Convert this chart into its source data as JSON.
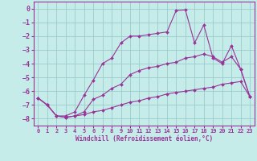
{
  "xlabel": "Windchill (Refroidissement éolien,°C)",
  "background_color": "#c5ece8",
  "grid_color": "#99cccc",
  "line_color": "#993399",
  "xlim": [
    -0.5,
    23.5
  ],
  "ylim": [
    -8.5,
    0.5
  ],
  "yticks": [
    0,
    -1,
    -2,
    -3,
    -4,
    -5,
    -6,
    -7,
    -8
  ],
  "xticks": [
    0,
    1,
    2,
    3,
    4,
    5,
    6,
    7,
    8,
    9,
    10,
    11,
    12,
    13,
    14,
    15,
    16,
    17,
    18,
    19,
    20,
    21,
    22,
    23
  ],
  "lines": [
    {
      "x": [
        0,
        1,
        2,
        3,
        4,
        5,
        6,
        7,
        8,
        9,
        10,
        11,
        12,
        13,
        14,
        15,
        16,
        17,
        18,
        19,
        20,
        21,
        22,
        23
      ],
      "y": [
        -6.5,
        -7.0,
        -7.8,
        -7.9,
        -7.8,
        -7.7,
        -7.5,
        -7.4,
        -7.2,
        -7.0,
        -6.8,
        -6.7,
        -6.5,
        -6.4,
        -6.2,
        -6.1,
        -6.0,
        -5.9,
        -5.8,
        -5.7,
        -5.5,
        -5.4,
        -5.3,
        -6.4
      ],
      "marker": "D",
      "markersize": 2.0,
      "linewidth": 0.8
    },
    {
      "x": [
        0,
        1,
        2,
        3,
        4,
        5,
        6,
        7,
        8,
        9,
        10,
        11,
        12,
        13,
        14,
        15,
        16,
        17,
        18,
        19,
        20,
        21,
        22,
        23
      ],
      "y": [
        -6.5,
        -7.0,
        -7.8,
        -7.9,
        -7.8,
        -7.5,
        -6.6,
        -6.3,
        -5.8,
        -5.5,
        -4.8,
        -4.5,
        -4.3,
        -4.2,
        -4.0,
        -3.9,
        -3.6,
        -3.5,
        -3.3,
        -3.5,
        -3.9,
        -3.5,
        -4.4,
        -6.4
      ],
      "marker": "D",
      "markersize": 2.0,
      "linewidth": 0.8
    },
    {
      "x": [
        0,
        1,
        2,
        3,
        4,
        5,
        6,
        7,
        8,
        9,
        10,
        11,
        12,
        13,
        14,
        15,
        16,
        17,
        18,
        19,
        20,
        21,
        22,
        23
      ],
      "y": [
        -6.5,
        -7.0,
        -7.8,
        -7.8,
        -7.5,
        -6.3,
        -5.2,
        -4.0,
        -3.6,
        -2.5,
        -2.0,
        -2.0,
        -1.9,
        -1.8,
        -1.7,
        -0.15,
        -0.1,
        -2.5,
        -1.2,
        -3.6,
        -4.0,
        -2.7,
        -4.4,
        -6.4
      ],
      "marker": "D",
      "markersize": 2.0,
      "linewidth": 0.8
    }
  ]
}
